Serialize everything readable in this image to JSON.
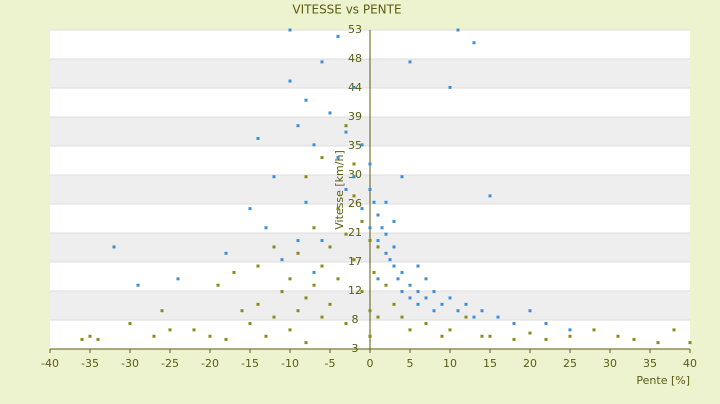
{
  "chart_data": {
    "type": "scatter",
    "title": "VITESSE vs PENTE",
    "x_label": "Pente [%]",
    "y_label": "Vitesse [km/h]",
    "xlim": [
      -40,
      40
    ],
    "xticks": [
      -40,
      -35,
      -30,
      -25,
      -20,
      -15,
      -10,
      -5,
      0,
      5,
      10,
      15,
      20,
      25,
      30,
      35,
      40
    ],
    "ylim": [
      3,
      53
    ],
    "yticks": [
      3,
      {
        "value": 7.55,
        "label": "8"
      },
      {
        "value": 12.09,
        "label": "12"
      },
      {
        "value": 16.64,
        "label": "17"
      },
      {
        "value": 21.18,
        "label": "21"
      },
      {
        "value": 25.73,
        "label": "26"
      },
      {
        "value": 30.27,
        "label": "30"
      },
      {
        "value": 34.82,
        "label": "35"
      },
      {
        "value": 39.36,
        "label": "39"
      },
      {
        "value": 43.91,
        "label": "44"
      },
      {
        "value": 48.45,
        "label": "48"
      },
      53
    ],
    "grid": true,
    "series": [
      {
        "color": "#3a8fd6",
        "x": [
          -10,
          -9,
          -8,
          -7,
          -6,
          -5,
          -4,
          -4,
          -3,
          -3,
          -2,
          -2,
          -1,
          -1,
          0,
          0,
          0,
          0.5,
          1,
          1,
          1.5,
          2,
          2,
          2.5,
          3,
          3,
          3.5,
          4,
          4,
          5,
          5,
          6,
          6,
          7,
          8,
          8,
          9,
          10,
          11,
          12,
          13,
          14,
          15,
          16,
          18,
          20,
          22,
          25,
          -12,
          -15,
          -18,
          -24,
          -29,
          -32,
          -13,
          -11,
          -8,
          -6,
          -14,
          11,
          13,
          -10,
          10,
          5,
          -7,
          -9,
          2,
          3,
          4,
          1,
          6,
          7
        ],
        "values": [
          45,
          38,
          42,
          35,
          48,
          40,
          33,
          52,
          37,
          28,
          44,
          30,
          35,
          25,
          28,
          22,
          32,
          26,
          24,
          20,
          22,
          18,
          21,
          17,
          16,
          19,
          14,
          15,
          12,
          13,
          11,
          12,
          10,
          11,
          12,
          9,
          10,
          11,
          9,
          10,
          8,
          9,
          27,
          8,
          7,
          9,
          7,
          6,
          30,
          25,
          18,
          14,
          13,
          19,
          22,
          17,
          26,
          20,
          36,
          53,
          51,
          53,
          44,
          48,
          15,
          20,
          26,
          23,
          30,
          14,
          16,
          14
        ]
      },
      {
        "color": "#8a8a14",
        "x": [
          -35,
          -34,
          -30,
          -27,
          -25,
          -22,
          -20,
          -18,
          -16,
          -15,
          -14,
          -13,
          -12,
          -11,
          -10,
          -10,
          -9,
          -9,
          -8,
          -8,
          -7,
          -7,
          -6,
          -6,
          -5,
          -5,
          -4,
          -4,
          -3,
          -3,
          -2,
          -2,
          -1,
          -1,
          0,
          0,
          0,
          0.5,
          1,
          1,
          2,
          3,
          4,
          5,
          7,
          9,
          10,
          12,
          14,
          15,
          18,
          20,
          22,
          25,
          28,
          31,
          33,
          36,
          38,
          40,
          -36,
          -26,
          -19,
          -17,
          -14,
          -12,
          -8,
          -6,
          -3,
          -2
        ],
        "values": [
          5,
          4.5,
          7,
          5,
          6,
          6,
          5,
          4.5,
          9,
          7,
          10,
          5,
          8,
          12,
          6,
          14,
          9,
          18,
          11,
          4,
          13,
          22,
          8,
          16,
          19,
          10,
          25,
          14,
          21,
          7,
          17,
          27,
          23,
          12,
          20,
          5,
          9,
          15,
          19,
          8,
          13,
          10,
          8,
          6,
          7,
          5,
          6,
          8,
          5,
          5,
          4.5,
          5.5,
          4.5,
          5,
          6,
          5,
          4.5,
          4,
          6,
          4,
          4.5,
          9,
          13,
          15,
          16,
          19,
          30,
          33,
          38,
          32
        ]
      }
    ]
  }
}
